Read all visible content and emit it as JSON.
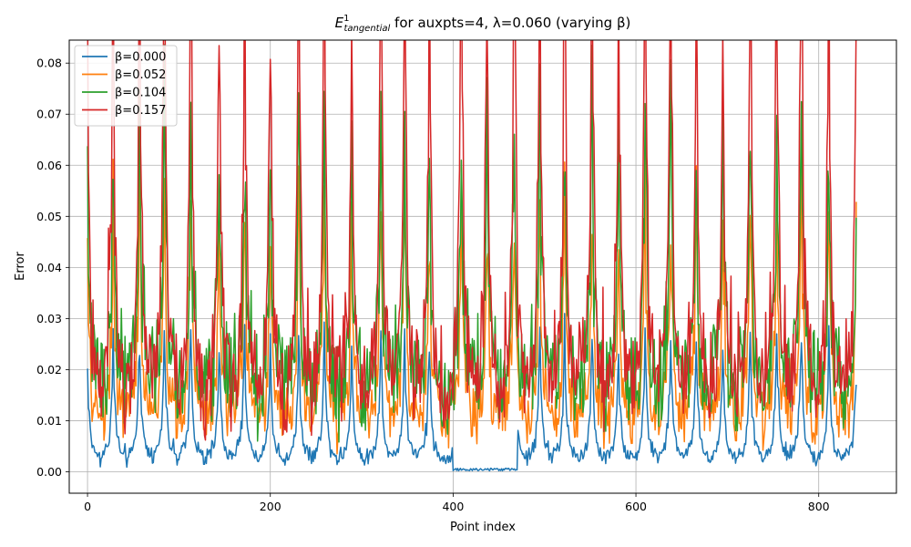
{
  "chart_data": {
    "type": "line",
    "title": {
      "symbol": "E",
      "superscript": "1",
      "subscript": "tangential",
      "rest": " for auxpts=4, λ=0.060 (varying β)"
    },
    "xlabel": "Point index",
    "ylabel": "Error",
    "xlim": [
      -20,
      885
    ],
    "ylim": [
      -0.0042,
      0.0845
    ],
    "x_ticks": [
      0,
      200,
      400,
      600,
      800
    ],
    "y_ticks": [
      0.0,
      0.01,
      0.02,
      0.03,
      0.04,
      0.05,
      0.06,
      0.07,
      0.08
    ],
    "y_tick_labels": [
      "0.00",
      "0.01",
      "0.02",
      "0.03",
      "0.04",
      "0.05",
      "0.06",
      "0.07",
      "0.08"
    ],
    "grid": true,
    "legend_position": "top-left",
    "n_points": 842,
    "peak_indices": [
      0,
      28,
      57,
      84,
      113,
      144,
      172,
      200,
      231,
      259,
      289,
      321,
      347,
      374,
      409,
      437,
      467,
      495,
      522,
      552,
      581,
      610,
      638,
      666,
      695,
      725,
      754,
      781,
      811,
      841
    ],
    "peak_heights": [
      0.0595,
      0.0748,
      0.0788,
      0.0802,
      0.0794,
      0.0695,
      0.0765,
      0.0665,
      0.0775,
      0.0788,
      0.0665,
      0.0775,
      0.0772,
      0.0695,
      0.0782,
      0.0695,
      0.0755,
      0.079,
      0.0772,
      0.0765,
      0.0672,
      0.078,
      0.0765,
      0.0702,
      0.0695,
      0.0777,
      0.0788,
      0.0782,
      0.0704,
      0.0597
    ],
    "series": [
      {
        "name": "β=0.000",
        "color": "#1f77b4",
        "scale": 0.26,
        "floor": 0.0019,
        "noise": 0.0012
      },
      {
        "name": "β=0.052",
        "color": "#ff7f0e",
        "scale": 0.46,
        "floor": 0.0085,
        "noise": 0.0045
      },
      {
        "name": "β=0.104",
        "color": "#2ca02c",
        "scale": 0.56,
        "floor": 0.0155,
        "noise": 0.005
      },
      {
        "name": "β=0.157",
        "color": "#d62728",
        "scale": 1.0,
        "floor": 0.012,
        "noise": 0.0075
      }
    ]
  }
}
